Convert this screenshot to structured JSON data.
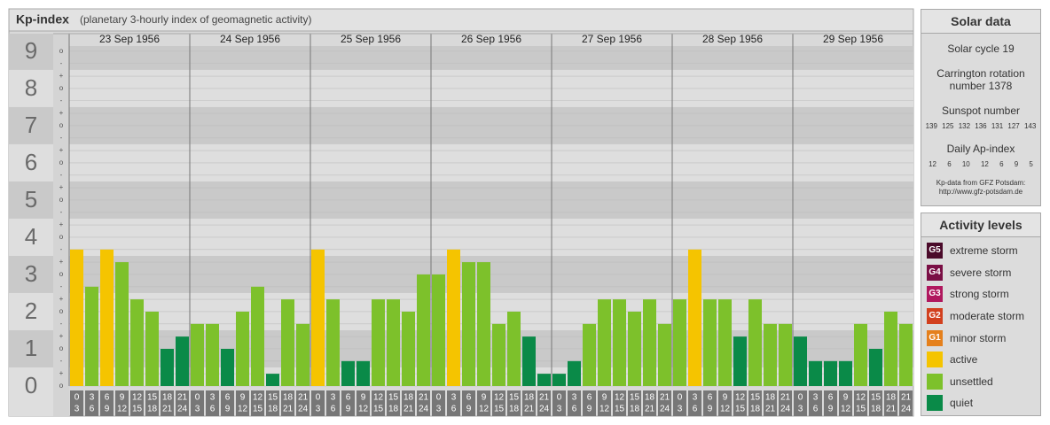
{
  "chart_data": {
    "type": "bar",
    "title": "Kp-index",
    "subtitle": "(planetary 3-hourly index of geomagnetic activity)",
    "categories": [
      "23 Sep 1956",
      "24 Sep 1956",
      "25 Sep 1956",
      "26 Sep 1956",
      "27 Sep 1956",
      "28 Sep 1956",
      "29 Sep 1956"
    ],
    "hours": [
      [
        "0",
        "3"
      ],
      [
        "3",
        "6"
      ],
      [
        "6",
        "9"
      ],
      [
        "9",
        "12"
      ],
      [
        "12",
        "15"
      ],
      [
        "15",
        "18"
      ],
      [
        "18",
        "21"
      ],
      [
        "21",
        "24"
      ]
    ],
    "values": [
      [
        3.67,
        2.67,
        3.67,
        3.33,
        2.33,
        2,
        1,
        1.33
      ],
      [
        1.67,
        1.67,
        1,
        2,
        2.67,
        0.33,
        2.33,
        1.67
      ],
      [
        3.67,
        2.33,
        0.67,
        0.67,
        2.33,
        2.33,
        2,
        3
      ],
      [
        3,
        3.67,
        3.33,
        3.33,
        1.67,
        2,
        1.33,
        0.33
      ],
      [
        0.33,
        0.67,
        1.67,
        2.33,
        2.33,
        2,
        2.33,
        1.67
      ],
      [
        2.33,
        3.67,
        2.33,
        2.33,
        1.33,
        2.33,
        1.67,
        1.67
      ],
      [
        1.33,
        0.67,
        0.67,
        0.67,
        1.67,
        1,
        2,
        1.67
      ]
    ],
    "colors": [
      [
        "#f5c400",
        "#7dc12b",
        "#f5c400",
        "#7dc12b",
        "#7dc12b",
        "#7dc12b",
        "#0a8a48",
        "#0a8a48"
      ],
      [
        "#7dc12b",
        "#7dc12b",
        "#0a8a48",
        "#7dc12b",
        "#7dc12b",
        "#0a8a48",
        "#7dc12b",
        "#7dc12b"
      ],
      [
        "#f5c400",
        "#7dc12b",
        "#0a8a48",
        "#0a8a48",
        "#7dc12b",
        "#7dc12b",
        "#7dc12b",
        "#7dc12b"
      ],
      [
        "#7dc12b",
        "#f5c400",
        "#7dc12b",
        "#7dc12b",
        "#7dc12b",
        "#7dc12b",
        "#0a8a48",
        "#0a8a48"
      ],
      [
        "#0a8a48",
        "#0a8a48",
        "#7dc12b",
        "#7dc12b",
        "#7dc12b",
        "#7dc12b",
        "#7dc12b",
        "#7dc12b"
      ],
      [
        "#7dc12b",
        "#f5c400",
        "#7dc12b",
        "#7dc12b",
        "#0a8a48",
        "#7dc12b",
        "#7dc12b",
        "#7dc12b"
      ],
      [
        "#0a8a48",
        "#0a8a48",
        "#0a8a48",
        "#0a8a48",
        "#7dc12b",
        "#0a8a48",
        "#7dc12b",
        "#7dc12b"
      ]
    ],
    "ylim": [
      0,
      9.14
    ],
    "yticks": [
      0,
      1,
      2,
      3,
      4,
      5,
      6,
      7,
      8,
      9
    ],
    "yminorticks": [
      {
        "value": 0,
        "label": "o"
      },
      {
        "value": 0.33,
        "label": "+"
      },
      {
        "value": 0.67,
        "label": "-"
      },
      {
        "value": 1,
        "label": "o"
      },
      {
        "value": 1.33,
        "label": "+"
      },
      {
        "value": 1.67,
        "label": "-"
      },
      {
        "value": 2,
        "label": "o"
      },
      {
        "value": 2.33,
        "label": "+"
      },
      {
        "value": 2.67,
        "label": "-"
      },
      {
        "value": 3,
        "label": "o"
      },
      {
        "value": 3.33,
        "label": "+"
      },
      {
        "value": 3.67,
        "label": "-"
      },
      {
        "value": 4,
        "label": "o"
      },
      {
        "value": 4.33,
        "label": "+"
      },
      {
        "value": 4.67,
        "label": "-"
      },
      {
        "value": 5,
        "label": "o"
      },
      {
        "value": 5.33,
        "label": "+"
      },
      {
        "value": 5.67,
        "label": "-"
      },
      {
        "value": 6,
        "label": "o"
      },
      {
        "value": 6.33,
        "label": "+"
      },
      {
        "value": 6.67,
        "label": "-"
      },
      {
        "value": 7,
        "label": "o"
      },
      {
        "value": 7.33,
        "label": "+"
      },
      {
        "value": 7.67,
        "label": "-"
      },
      {
        "value": 8,
        "label": "o"
      },
      {
        "value": 8.33,
        "label": "+"
      },
      {
        "value": 8.67,
        "label": "-"
      },
      {
        "value": 9,
        "label": "o"
      }
    ],
    "grid": true
  },
  "solar_data": {
    "title": "Solar data",
    "cycle": "Solar cycle 19",
    "carrington": "Carrington rotation number 1378",
    "sunspot_title": "Sunspot number",
    "sunspot_numbers": [
      139,
      125,
      132,
      136,
      131,
      127,
      143
    ],
    "ap_title": "Daily Ap-index",
    "ap_values": [
      12,
      6,
      10,
      12,
      6,
      9,
      5
    ],
    "source": "Kp-data from GFZ Potsdam:",
    "source_url": "http://www.gfz-potsdam.de"
  },
  "activity_levels": {
    "title": "Activity levels",
    "items": [
      {
        "badge": "G5",
        "name": "extreme storm",
        "color": "#4a0a2a"
      },
      {
        "badge": "G4",
        "name": "severe storm",
        "color": "#7a0f45"
      },
      {
        "badge": "G3",
        "name": "strong storm",
        "color": "#b0185e"
      },
      {
        "badge": "G2",
        "name": "moderate storm",
        "color": "#d2401e"
      },
      {
        "badge": "G1",
        "name": "minor storm",
        "color": "#e5801c"
      },
      {
        "name": "active",
        "color": "#f5c400"
      },
      {
        "name": "unsettled",
        "color": "#7dc12b"
      },
      {
        "name": "quiet",
        "color": "#0a8a48"
      }
    ]
  }
}
